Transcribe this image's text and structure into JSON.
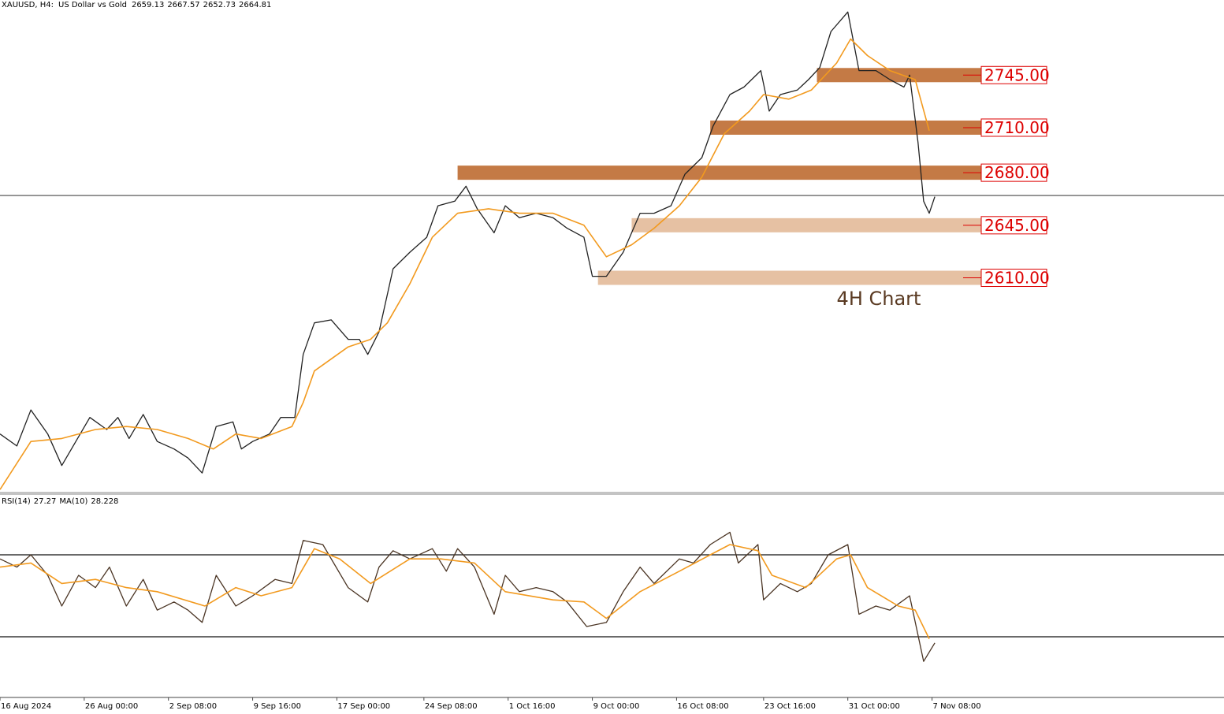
{
  "chart_data": [
    {
      "type": "line",
      "symbol": "XAUUSD, H4:",
      "description": "US Dollar vs Gold",
      "ohlc": [
        2659.13,
        2667.57,
        2652.73,
        2664.81
      ],
      "annotation": "4H Chart",
      "xlim": [
        0,
        436
      ],
      "ylim": [
        2467,
        2795
      ],
      "series": [
        {
          "color": "#222222",
          "x": [
            0,
            6,
            11,
            17,
            22,
            27,
            32,
            38,
            42,
            46,
            51,
            56,
            62,
            67,
            72,
            77,
            83,
            86,
            90,
            96,
            100,
            105,
            108,
            112,
            118,
            124,
            128,
            131,
            135,
            140,
            146,
            152,
            156,
            162,
            166,
            170,
            176,
            180,
            185,
            191,
            197,
            202,
            208,
            211,
            216,
            222,
            228,
            233,
            239,
            244,
            250,
            254,
            260,
            265,
            271,
            274,
            278,
            284,
            288,
            292,
            296,
            302,
            306,
            312,
            317,
            322,
            324,
            327,
            329,
            331,
            333
          ],
          "values": [
            2506,
            2498,
            2522,
            2506,
            2485,
            2501,
            2517,
            2509,
            2517,
            2503,
            2519,
            2501,
            2496,
            2490,
            2480,
            2511,
            2514,
            2496,
            2501,
            2506,
            2517,
            2517,
            2559,
            2580,
            2582,
            2569,
            2569,
            2559,
            2574,
            2616,
            2627,
            2637,
            2658,
            2661,
            2671,
            2656,
            2640,
            2658,
            2650,
            2653,
            2650,
            2643,
            2637,
            2611,
            2611,
            2627,
            2653,
            2653,
            2658,
            2679,
            2690,
            2711,
            2732,
            2737,
            2748,
            2721,
            2732,
            2735,
            2742,
            2750,
            2774,
            2787,
            2748,
            2748,
            2742,
            2737,
            2745,
            2700,
            2661,
            2653,
            2664
          ]
        },
        {
          "color": "#f29a1f",
          "x": [
            0,
            11,
            22,
            34,
            45,
            56,
            67,
            76,
            84,
            93,
            104,
            108,
            112,
            124,
            132,
            138,
            146,
            154,
            163,
            174,
            185,
            197,
            208,
            216,
            225,
            233,
            242,
            250,
            258,
            267,
            272,
            281,
            289,
            298,
            303,
            309,
            317,
            326,
            331
          ],
          "values": [
            2469,
            2501,
            2503,
            2509,
            2511,
            2509,
            2503,
            2496,
            2506,
            2503,
            2511,
            2527,
            2548,
            2564,
            2569,
            2580,
            2606,
            2637,
            2653,
            2656,
            2653,
            2653,
            2645,
            2624,
            2632,
            2643,
            2658,
            2677,
            2706,
            2721,
            2732,
            2729,
            2735,
            2753,
            2769,
            2758,
            2748,
            2742,
            2708
          ]
        }
      ],
      "levels": [
        {
          "value": 2745,
          "label": "2745.00",
          "from": 291,
          "color": "#c47a45"
        },
        {
          "value": 2710,
          "label": "2710.00",
          "from": 253,
          "color": "#c47a45"
        },
        {
          "value": 2680,
          "label": "2680.00",
          "from": 163,
          "color": "#c47a45"
        },
        {
          "value": 2645,
          "label": "2645.00",
          "from": 225,
          "color": "#e6c1a3"
        },
        {
          "value": 2610,
          "label": "2610.00",
          "from": 213,
          "color": "#e6c1a3"
        }
      ]
    },
    {
      "type": "line",
      "title": "RSI(14)",
      "rsi_value": 27.27,
      "ma_title": "MA(10)",
      "ma_value": 28.228,
      "xlim": [
        0,
        436
      ],
      "ylim": [
        0,
        100
      ],
      "levels": [
        70,
        30
      ],
      "xticks": [
        {
          "value": 0,
          "label": "16 Aug 2024"
        },
        {
          "value": 30,
          "label": "26 Aug 00:00"
        },
        {
          "value": 60,
          "label": "2 Sep 08:00"
        },
        {
          "value": 90,
          "label": "9 Sep 16:00"
        },
        {
          "value": 120,
          "label": "17 Sep 00:00"
        },
        {
          "value": 151,
          "label": "24 Sep 08:00"
        },
        {
          "value": 181,
          "label": "1 Oct 16:00"
        },
        {
          "value": 211,
          "label": "9 Oct 00:00"
        },
        {
          "value": 241,
          "label": "16 Oct 08:00"
        },
        {
          "value": 272,
          "label": "23 Oct 16:00"
        },
        {
          "value": 302,
          "label": "31 Oct 00:00"
        },
        {
          "value": 332,
          "label": "7 Nov 08:00"
        }
      ],
      "series": [
        {
          "color": "#4a3423",
          "x": [
            0,
            6,
            11,
            17,
            22,
            28,
            34,
            39,
            45,
            51,
            56,
            62,
            67,
            72,
            77,
            84,
            90,
            98,
            104,
            108,
            115,
            124,
            131,
            135,
            140,
            146,
            154,
            159,
            163,
            169,
            176,
            180,
            185,
            191,
            197,
            202,
            209,
            216,
            222,
            228,
            233,
            242,
            247,
            253,
            260,
            263,
            270,
            272,
            278,
            284,
            289,
            295,
            302,
            306,
            312,
            317,
            324,
            329,
            333
          ],
          "values": [
            68,
            64,
            70,
            60,
            45,
            60,
            54,
            64,
            45,
            58,
            43,
            47,
            43,
            37,
            60,
            45,
            50,
            58,
            56,
            77,
            75,
            54,
            47,
            64,
            72,
            68,
            73,
            62,
            73,
            64,
            41,
            60,
            52,
            54,
            52,
            47,
            35,
            37,
            52,
            64,
            56,
            68,
            66,
            75,
            81,
            66,
            75,
            48,
            56,
            52,
            56,
            70,
            75,
            41,
            45,
            43,
            50,
            18,
            27
          ]
        },
        {
          "color": "#f29a1f",
          "x": [
            0,
            11,
            22,
            34,
            45,
            56,
            73,
            84,
            93,
            104,
            112,
            121,
            132,
            146,
            157,
            169,
            180,
            197,
            208,
            216,
            228,
            242,
            253,
            260,
            270,
            275,
            287,
            298,
            303,
            309,
            320,
            326,
            331
          ],
          "values": [
            64,
            66,
            56,
            58,
            54,
            52,
            45,
            54,
            50,
            54,
            73,
            68,
            56,
            68,
            68,
            66,
            52,
            48,
            47,
            39,
            52,
            62,
            70,
            75,
            72,
            60,
            54,
            68,
            70,
            54,
            45,
            43,
            29
          ]
        }
      ]
    }
  ]
}
